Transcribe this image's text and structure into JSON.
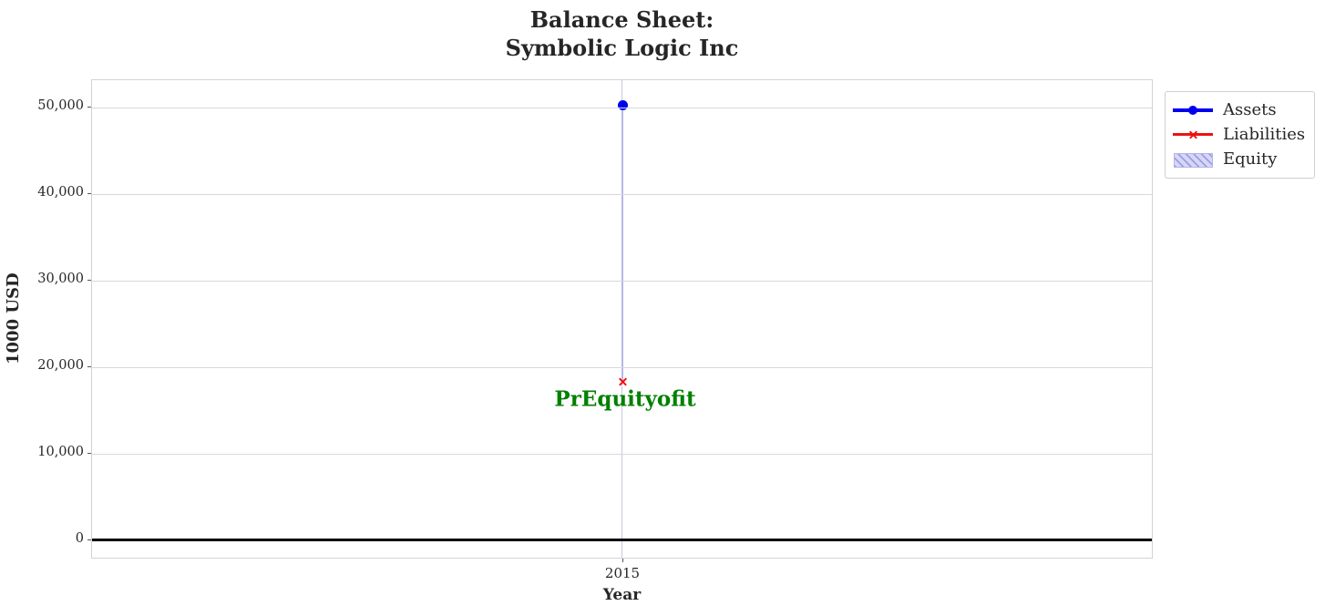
{
  "colors": {
    "assets": "#0000ee",
    "liabilities": "#ee1111",
    "equity_fill": "#d6d6f8",
    "equity_hatch": "#9e9ee0",
    "equity_edge": "#b7b7e6",
    "annotation": "#008000",
    "grid": "#d9d9d9",
    "grid_vertical": "#c9c9dc",
    "zero_line": "#000000",
    "text": "#262626",
    "border": "#d3d3d3"
  },
  "chart_data": {
    "type": "line",
    "title": "Balance Sheet:\nSymbolic Logic Inc",
    "xlabel": "Year",
    "ylabel": "1000 USD",
    "x": [
      2015
    ],
    "series": [
      {
        "name": "Assets",
        "values": [
          50300
        ],
        "color": "#0000ee",
        "marker": "circle",
        "style": "thick-line"
      },
      {
        "name": "Liabilities",
        "values": [
          18300
        ],
        "color": "#ee1111",
        "marker": "x",
        "style": "line"
      },
      {
        "name": "Equity",
        "values": [
          32000
        ],
        "color": "#b7b7e6",
        "style": "hatched-area"
      }
    ],
    "annotation": {
      "text": "PrEquityofit",
      "x": 2015,
      "y": 16300
    },
    "yticks": {
      "values": [
        0,
        10000,
        20000,
        30000,
        40000,
        50000
      ],
      "labels": [
        "0",
        "10,000",
        "20,000",
        "30,000",
        "40,000",
        "50,000"
      ]
    },
    "xticks": {
      "values": [
        2015
      ],
      "labels": [
        "2015"
      ]
    },
    "ylim": [
      -2200,
      53200
    ],
    "grid": true,
    "zero_line": true,
    "legend": {
      "position": "outside-top-right",
      "entries": [
        "Assets",
        "Liabilities",
        "Equity"
      ]
    }
  }
}
